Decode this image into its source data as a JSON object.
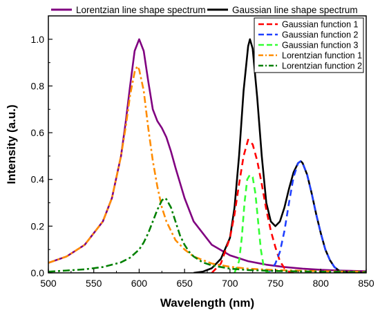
{
  "chart_data": {
    "type": "line",
    "xlabel": "Wavelength (nm)",
    "ylabel": "Intensity (a.u.)",
    "xlim": [
      500,
      850
    ],
    "ylim": [
      0,
      1.1
    ],
    "xticks": [
      500,
      550,
      600,
      650,
      700,
      750,
      800,
      850
    ],
    "xtick_labels": [
      "500",
      "550",
      "600",
      "650",
      "700",
      "750",
      "800",
      "850"
    ],
    "yticks": [
      0,
      0.2,
      0.4,
      0.6,
      0.8,
      1.0
    ],
    "ytick_labels": [
      "0.0",
      "0.2",
      "0.4",
      "0.6",
      "0.8",
      "1.0"
    ],
    "grid": false,
    "top_legend_placement": "top, outside",
    "inner_legend_placement": "top-right",
    "series": [
      {
        "name": "Lorentzian line shape spectrum",
        "color": "#800080",
        "style": "solid",
        "legend": "top",
        "x": [
          500,
          520,
          540,
          560,
          570,
          580,
          585,
          590,
          595,
          600,
          605,
          610,
          615,
          620,
          625,
          630,
          635,
          640,
          650,
          660,
          680,
          700,
          720,
          740,
          760,
          780,
          800,
          820,
          850
        ],
        "y": [
          0.043,
          0.07,
          0.12,
          0.22,
          0.32,
          0.5,
          0.64,
          0.8,
          0.95,
          1.0,
          0.95,
          0.82,
          0.7,
          0.65,
          0.62,
          0.58,
          0.52,
          0.45,
          0.32,
          0.22,
          0.12,
          0.075,
          0.05,
          0.035,
          0.025,
          0.018,
          0.013,
          0.01,
          0.007
        ]
      },
      {
        "name": "Gaussian line shape spectrum",
        "color": "#000000",
        "style": "solid",
        "legend": "top",
        "x": [
          660,
          670,
          680,
          690,
          700,
          705,
          710,
          715,
          720,
          722,
          725,
          730,
          735,
          740,
          745,
          750,
          755,
          760,
          765,
          770,
          775,
          778,
          780,
          785,
          790,
          795,
          800,
          805,
          810,
          815,
          820,
          830,
          850
        ],
        "y": [
          0.0,
          0.005,
          0.02,
          0.06,
          0.15,
          0.28,
          0.5,
          0.78,
          0.97,
          1.0,
          0.96,
          0.75,
          0.5,
          0.3,
          0.22,
          0.2,
          0.22,
          0.28,
          0.36,
          0.43,
          0.47,
          0.478,
          0.47,
          0.42,
          0.34,
          0.25,
          0.17,
          0.1,
          0.055,
          0.025,
          0.01,
          0.002,
          0.0
        ]
      },
      {
        "name": "Gaussian function 1",
        "color": "#ff0000",
        "style": "dashed",
        "legend": "inner",
        "x": [
          680,
          690,
          700,
          705,
          710,
          715,
          720,
          725,
          730,
          735,
          740,
          745,
          750,
          755,
          760,
          765,
          770
        ],
        "y": [
          0.0,
          0.04,
          0.15,
          0.25,
          0.38,
          0.5,
          0.57,
          0.55,
          0.48,
          0.38,
          0.27,
          0.18,
          0.11,
          0.05,
          0.02,
          0.005,
          0.0
        ]
      },
      {
        "name": "Gaussian function 2",
        "color": "#1f3fff",
        "style": "dashed",
        "legend": "inner",
        "x": [
          740,
          745,
          750,
          755,
          760,
          765,
          770,
          775,
          778,
          780,
          785,
          790,
          795,
          800,
          805,
          810,
          815,
          820,
          830
        ],
        "y": [
          0.0,
          0.01,
          0.04,
          0.09,
          0.18,
          0.3,
          0.41,
          0.47,
          0.478,
          0.47,
          0.42,
          0.34,
          0.25,
          0.17,
          0.1,
          0.055,
          0.025,
          0.01,
          0.0
        ]
      },
      {
        "name": "Gaussian function 3",
        "color": "#33ff33",
        "style": "dashed",
        "legend": "inner",
        "x": [
          705,
          710,
          713,
          716,
          719,
          722,
          725,
          728,
          731,
          734,
          737,
          740,
          745
        ],
        "y": [
          0.0,
          0.05,
          0.15,
          0.3,
          0.4,
          0.42,
          0.41,
          0.34,
          0.22,
          0.1,
          0.03,
          0.005,
          0.0
        ]
      },
      {
        "name": "Lorentzian function 1",
        "color": "#ff8c00",
        "style": "dashdot",
        "legend": "inner",
        "x": [
          500,
          520,
          540,
          560,
          570,
          580,
          585,
          590,
          595,
          598,
          600,
          605,
          610,
          615,
          620,
          625,
          630,
          640,
          650,
          660,
          680,
          700,
          720,
          750,
          800,
          850
        ],
        "y": [
          0.043,
          0.07,
          0.12,
          0.22,
          0.32,
          0.5,
          0.62,
          0.76,
          0.86,
          0.885,
          0.87,
          0.78,
          0.62,
          0.48,
          0.37,
          0.28,
          0.22,
          0.14,
          0.1,
          0.07,
          0.04,
          0.026,
          0.018,
          0.012,
          0.007,
          0.005
        ]
      },
      {
        "name": "Lorentzian function 2",
        "color": "#008000",
        "style": "dashdot",
        "legend": "inner",
        "x": [
          500,
          520,
          540,
          560,
          580,
          590,
          600,
          605,
          610,
          615,
          620,
          625,
          628,
          630,
          635,
          640,
          645,
          650,
          655,
          660,
          670,
          680,
          700,
          720,
          750,
          800,
          850
        ],
        "y": [
          0.005,
          0.01,
          0.015,
          0.025,
          0.045,
          0.065,
          0.1,
          0.13,
          0.17,
          0.22,
          0.27,
          0.31,
          0.32,
          0.315,
          0.28,
          0.22,
          0.16,
          0.12,
          0.09,
          0.07,
          0.045,
          0.032,
          0.018,
          0.012,
          0.008,
          0.005,
          0.003
        ]
      }
    ]
  }
}
